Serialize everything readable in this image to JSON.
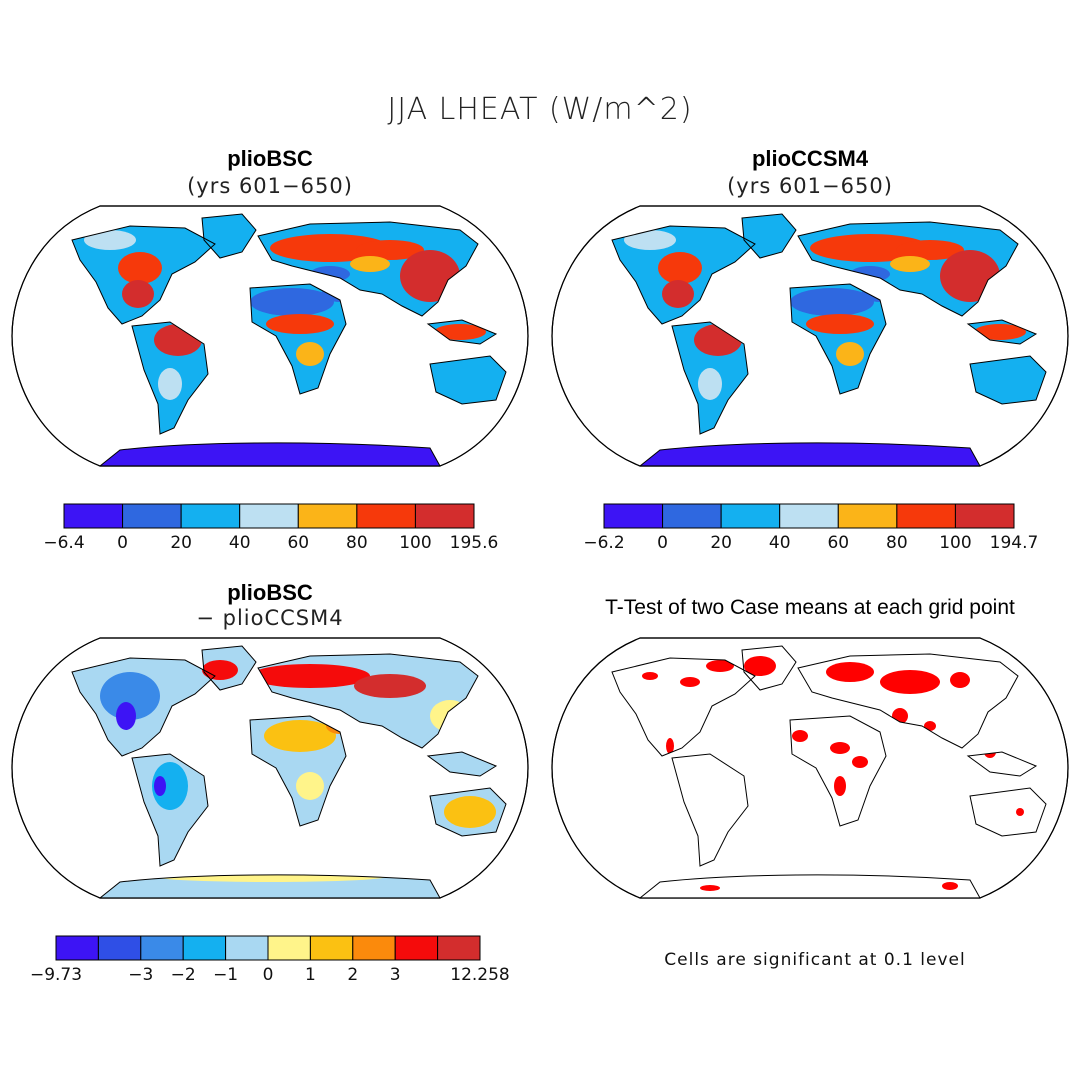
{
  "figure": {
    "title": "JJA LHEAT (W/m^2)",
    "note": "Cells are significant at 0.1 level"
  },
  "chart_data": [
    {
      "type": "heatmap",
      "title": "plioBSC",
      "subtitle": "(yrs 601−650)",
      "colorbar": {
        "tick_labels": [
          "−6.4",
          "0",
          "20",
          "40",
          "60",
          "80",
          "100",
          "195.6"
        ],
        "colors": [
          "#3d14f5",
          "#2f68e0",
          "#14b0f0",
          "#bde0f2",
          "#fbb418",
          "#f6390b",
          "#d32d2d"
        ]
      }
    },
    {
      "type": "heatmap",
      "title": "plioCCSM4",
      "subtitle": "(yrs 601−650)",
      "colorbar": {
        "tick_labels": [
          "−6.2",
          "0",
          "20",
          "40",
          "60",
          "80",
          "100",
          "194.7"
        ],
        "colors": [
          "#3d14f5",
          "#2f68e0",
          "#14b0f0",
          "#bde0f2",
          "#fbb418",
          "#f6390b",
          "#d32d2d"
        ]
      }
    },
    {
      "type": "heatmap",
      "title": "plioBSC",
      "subtitle": "− plioCCSM4",
      "colorbar": {
        "tick_labels": [
          "−9.73",
          "",
          "−3",
          "−2",
          "−1",
          "0",
          "1",
          "2",
          "3",
          "",
          "12.258"
        ],
        "colors": [
          "#3d14f5",
          "#2f4fe6",
          "#3a8ae8",
          "#14b0f0",
          "#a9d8f2",
          "#fff48a",
          "#fbc112",
          "#fb8a0c",
          "#f50b0b",
          "#d32d2d"
        ]
      }
    },
    {
      "type": "heatmap",
      "title": "T-Test of two Case means at each grid point",
      "significant_color": "#ff0000"
    }
  ]
}
